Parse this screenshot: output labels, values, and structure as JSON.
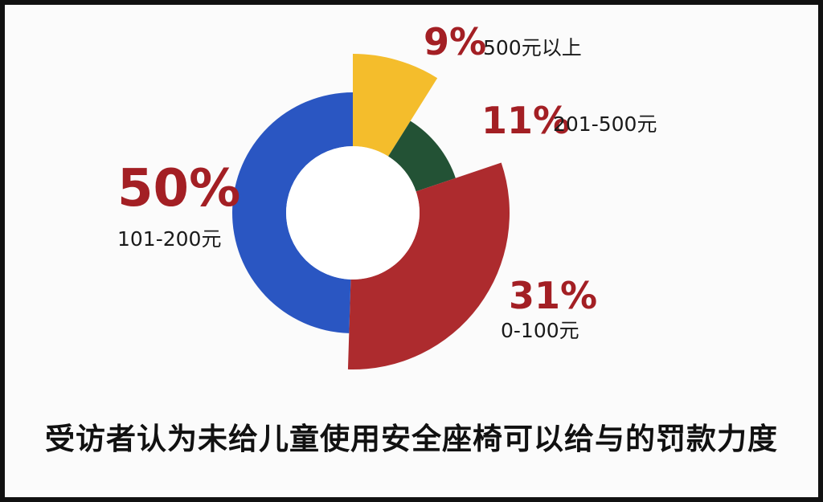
{
  "chart_data": {
    "type": "pie",
    "variant": "donut-exploded",
    "title": "受访者认为未给儿童使用安全座椅可以给与的罚款力度",
    "slices": [
      {
        "label": "500元以上",
        "percent_label": "9%",
        "value": 9,
        "color": "#f4bd2c"
      },
      {
        "label": "201-500元",
        "percent_label": "11%",
        "value": 11,
        "color": "#235235"
      },
      {
        "label": "0-100元",
        "percent_label": "31%",
        "value": 31,
        "color": "#ad2b2e"
      },
      {
        "label": "101-200元",
        "percent_label": "50%",
        "value": 50,
        "color": "#2a56c2"
      }
    ]
  }
}
